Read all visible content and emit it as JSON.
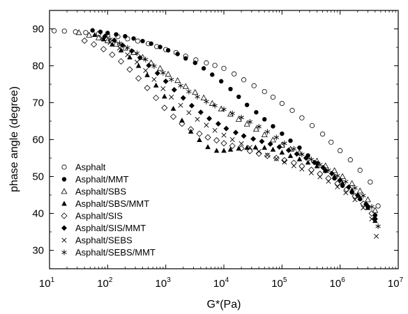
{
  "chart_data": {
    "type": "scatter",
    "title": "",
    "xlabel": "G*(Pa)",
    "ylabel": "phase angle (degree)",
    "xscale": "log",
    "xlim": [
      10,
      10000000
    ],
    "ylim": [
      25,
      95
    ],
    "x_ticks": [
      {
        "value": 10,
        "base": "10",
        "exp": "1"
      },
      {
        "value": 100,
        "base": "10",
        "exp": "2"
      },
      {
        "value": 1000,
        "base": "10",
        "exp": "3"
      },
      {
        "value": 10000,
        "base": "10",
        "exp": "4"
      },
      {
        "value": 100000,
        "base": "10",
        "exp": "5"
      },
      {
        "value": 1000000,
        "base": "10",
        "exp": "6"
      },
      {
        "value": 10000000,
        "base": "10",
        "exp": "7"
      }
    ],
    "y_ticks": [
      {
        "value": 30,
        "label": "30"
      },
      {
        "value": 40,
        "label": "40"
      },
      {
        "value": 50,
        "label": "50"
      },
      {
        "value": 60,
        "label": "60"
      },
      {
        "value": 70,
        "label": "70"
      },
      {
        "value": 80,
        "label": "80"
      },
      {
        "value": 90,
        "label": "90"
      }
    ],
    "grid": false,
    "legend_position": "bottom-left",
    "series": [
      {
        "name": "Asphalt",
        "marker": "circle-open",
        "x": [
          12,
          18,
          28,
          42,
          70,
          100,
          150,
          220,
          330,
          500,
          700,
          1000,
          1500,
          2200,
          3300,
          5000,
          7000,
          10000,
          15000,
          22000,
          33000,
          50000,
          70000,
          100000,
          150000,
          220000,
          330000,
          500000,
          700000,
          1000000,
          1500000,
          2200000,
          3300000,
          4500000
        ],
        "y": [
          89.5,
          89.4,
          89.2,
          89.0,
          88.7,
          88.3,
          87.9,
          87.3,
          86.7,
          86.0,
          85.2,
          84.4,
          83.6,
          82.6,
          81.6,
          80.8,
          80.1,
          79.3,
          77.8,
          76.2,
          74.6,
          73.0,
          71.5,
          69.8,
          67.9,
          65.9,
          63.8,
          61.5,
          59.3,
          57.0,
          54.5,
          51.7,
          48.5,
          42.0
        ]
      },
      {
        "name": "Asphalt/MMT",
        "marker": "circle-filled",
        "x": [
          55,
          75,
          100,
          140,
          200,
          280,
          400,
          560,
          800,
          1100,
          1600,
          2200,
          3200,
          4500,
          6300,
          9000,
          13000,
          18000,
          25000,
          36000,
          50000,
          70000,
          100000,
          140000,
          200000,
          280000,
          400000,
          560000,
          800000,
          1100000,
          1600000,
          2200000,
          3000000,
          4000000
        ],
        "y": [
          89.6,
          89.2,
          88.9,
          88.5,
          88.0,
          87.4,
          86.7,
          86.0,
          85.1,
          84.2,
          83.2,
          82.0,
          80.8,
          79.3,
          77.6,
          75.8,
          73.7,
          71.6,
          69.4,
          67.4,
          65.5,
          63.6,
          61.6,
          59.7,
          57.8,
          55.7,
          53.6,
          51.5,
          49.5,
          47.5,
          45.7,
          43.9,
          41.8,
          39.5
        ]
      },
      {
        "name": "Asphalt/SBS",
        "marker": "triangle-open",
        "x": [
          32,
          48,
          70,
          100,
          140,
          200,
          280,
          400,
          560,
          800,
          1100,
          1600,
          2200,
          3200,
          4500,
          6300,
          9000,
          13000,
          18000,
          25000,
          36000,
          50000,
          70000,
          100000,
          140000,
          200000,
          280000,
          400000,
          560000,
          800000,
          1100000,
          1600000,
          2200000,
          3000000,
          4000000
        ],
        "y": [
          89.0,
          88.3,
          87.6,
          86.8,
          85.9,
          84.8,
          83.6,
          82.3,
          80.8,
          79.3,
          77.7,
          76.0,
          74.4,
          72.8,
          71.3,
          69.8,
          68.3,
          66.9,
          65.5,
          64.2,
          62.8,
          61.3,
          59.9,
          58.5,
          57.4,
          56.4,
          55.3,
          54.2,
          52.9,
          51.6,
          50.0,
          48.1,
          46.1,
          43.7,
          40.8
        ]
      },
      {
        "name": "Asphalt/SBS/MMT",
        "marker": "triangle-filled",
        "x": [
          60,
          85,
          120,
          170,
          240,
          340,
          480,
          680,
          950,
          1350,
          1900,
          2700,
          3800,
          5300,
          7500,
          10000,
          13000,
          18000,
          25000,
          35000,
          50000,
          70000,
          100000,
          140000,
          200000,
          280000,
          400000,
          560000,
          800000,
          1100000,
          1600000,
          2200000,
          3000000,
          4000000
        ],
        "y": [
          88.4,
          87.2,
          85.8,
          84.2,
          82.3,
          80.0,
          77.5,
          74.7,
          71.7,
          68.4,
          65.2,
          62.2,
          59.9,
          58.0,
          57.0,
          57.0,
          57.3,
          57.6,
          57.8,
          57.9,
          57.8,
          57.3,
          56.5,
          55.6,
          54.7,
          53.8,
          52.8,
          51.6,
          50.0,
          48.2,
          46.3,
          44.2,
          41.5,
          38.0
        ]
      },
      {
        "name": "Asphalt/SIS",
        "marker": "diamond-open",
        "x": [
          40,
          58,
          85,
          120,
          170,
          240,
          340,
          480,
          680,
          950,
          1350,
          1900,
          2700,
          3800,
          5300,
          7500,
          10000,
          14000,
          20000,
          28000,
          40000,
          56000,
          80000,
          110000,
          160000,
          220000,
          320000,
          450000,
          630000,
          900000,
          1300000,
          1800000,
          2500000,
          3500000
        ],
        "y": [
          86.8,
          85.8,
          84.5,
          83.0,
          81.2,
          79.0,
          76.6,
          74.0,
          71.3,
          68.6,
          66.2,
          64.3,
          62.8,
          61.6,
          60.6,
          59.8,
          59.0,
          58.3,
          57.6,
          56.9,
          56.2,
          55.6,
          55.0,
          54.4,
          53.7,
          52.8,
          51.8,
          50.7,
          49.5,
          48.1,
          46.5,
          44.7,
          42.6,
          40.0
        ]
      },
      {
        "name": "Asphalt/SIS/MMT",
        "marker": "diamond-filled",
        "x": [
          90,
          130,
          180,
          260,
          360,
          510,
          720,
          1000,
          1400,
          2000,
          2800,
          4000,
          5600,
          8000,
          11000,
          16000,
          22000,
          32000,
          45000,
          63000,
          90000,
          130000,
          180000,
          260000,
          360000,
          510000,
          720000,
          1000000,
          1400000,
          2000000,
          2800000,
          4000000
        ],
        "y": [
          88.0,
          86.9,
          85.6,
          84.0,
          82.2,
          80.1,
          78.0,
          75.8,
          73.5,
          71.3,
          69.2,
          67.4,
          65.7,
          64.3,
          63.0,
          61.9,
          61.0,
          60.2,
          59.5,
          58.8,
          58.0,
          57.1,
          56.1,
          55.0,
          53.8,
          52.4,
          50.8,
          49.0,
          47.1,
          44.9,
          42.5,
          38.5
        ]
      },
      {
        "name": "Asphalt/SEBS",
        "marker": "cross",
        "x": [
          80,
          110,
          160,
          220,
          320,
          450,
          630,
          900,
          1250,
          1800,
          2500,
          3500,
          5000,
          7000,
          10000,
          14000,
          20000,
          28000,
          40000,
          56000,
          80000,
          110000,
          160000,
          220000,
          320000,
          450000,
          630000,
          900000,
          1250000,
          1800000,
          2500000,
          3500000,
          4200000
        ],
        "y": [
          87.5,
          86.3,
          84.8,
          83.0,
          81.0,
          78.7,
          76.3,
          73.8,
          71.5,
          69.3,
          67.3,
          65.5,
          63.9,
          62.5,
          61.2,
          60.0,
          58.9,
          57.9,
          56.8,
          55.8,
          54.8,
          53.9,
          52.9,
          52.0,
          51.0,
          49.9,
          48.7,
          47.2,
          45.6,
          43.7,
          41.5,
          38.5,
          33.8
        ]
      },
      {
        "name": "Asphalt/SEBS/MMT",
        "marker": "asterisk",
        "x": [
          110,
          160,
          220,
          320,
          450,
          630,
          900,
          1250,
          1800,
          2500,
          3500,
          5000,
          7000,
          10000,
          14000,
          20000,
          28000,
          40000,
          56000,
          80000,
          110000,
          160000,
          220000,
          320000,
          450000,
          630000,
          900000,
          1250000,
          1800000,
          2500000,
          3500000,
          4500000
        ],
        "y": [
          87.2,
          86.1,
          84.9,
          83.4,
          81.7,
          79.9,
          78.1,
          76.3,
          74.6,
          73.0,
          71.6,
          70.3,
          69.2,
          68.2,
          67.1,
          66.0,
          64.8,
          63.5,
          62.1,
          60.6,
          59.0,
          57.5,
          56.0,
          54.6,
          53.2,
          51.7,
          50.2,
          48.6,
          46.9,
          44.8,
          41.8,
          36.5
        ]
      }
    ]
  }
}
